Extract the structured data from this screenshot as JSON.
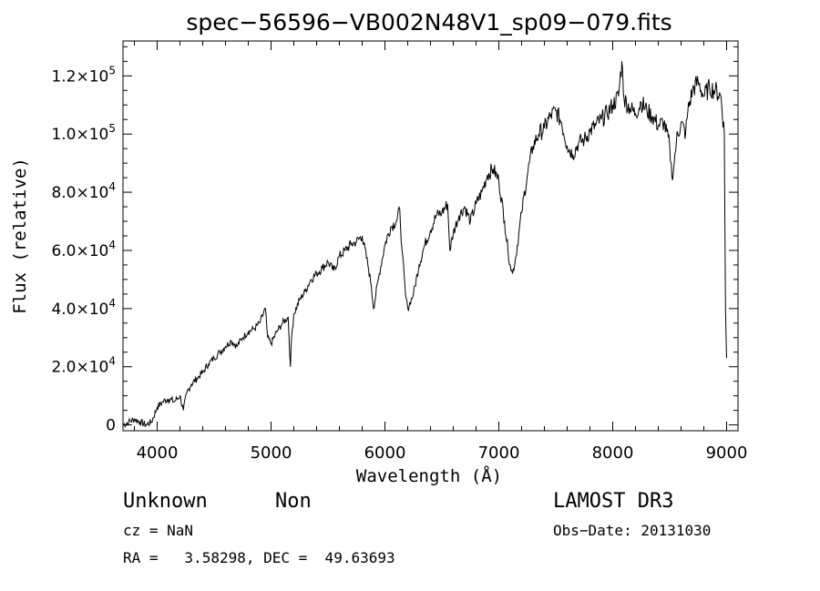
{
  "chart_data": {
    "type": "line",
    "title": "spec−56596−VB002N48V1_sp09−079.fits",
    "xlabel": "Wavelength (Å)",
    "ylabel": "Flux (relative)",
    "xlim": [
      3700,
      9100
    ],
    "ylim": [
      -2000,
      132000
    ],
    "x_ticks": [
      {
        "value": 4000,
        "label": "4000"
      },
      {
        "value": 5000,
        "label": "5000"
      },
      {
        "value": 6000,
        "label": "6000"
      },
      {
        "value": 7000,
        "label": "7000"
      },
      {
        "value": 8000,
        "label": "8000"
      },
      {
        "value": 9000,
        "label": "9000"
      }
    ],
    "y_ticks": [
      {
        "value": 0,
        "label": "0"
      },
      {
        "value": 20000,
        "mantissa": "2.0",
        "exp": "4"
      },
      {
        "value": 40000,
        "mantissa": "4.0",
        "exp": "4"
      },
      {
        "value": 60000,
        "mantissa": "6.0",
        "exp": "4"
      },
      {
        "value": 80000,
        "mantissa": "8.0",
        "exp": "4"
      },
      {
        "value": 100000,
        "mantissa": "1.0",
        "exp": "5"
      },
      {
        "value": 120000,
        "mantissa": "1.2",
        "exp": "5"
      }
    ],
    "series": [
      {
        "name": "flux",
        "x": [
          3700,
          3750,
          3800,
          3850,
          3900,
          3950,
          4000,
          4050,
          4100,
          4150,
          4200,
          4230,
          4260,
          4300,
          4350,
          4400,
          4450,
          4500,
          4550,
          4600,
          4650,
          4700,
          4750,
          4800,
          4850,
          4900,
          4950,
          4970,
          5000,
          5050,
          5100,
          5150,
          5170,
          5180,
          5200,
          5250,
          5300,
          5350,
          5400,
          5450,
          5500,
          5550,
          5600,
          5650,
          5700,
          5750,
          5800,
          5850,
          5880,
          5900,
          5950,
          6000,
          6050,
          6100,
          6130,
          6150,
          6180,
          6200,
          6250,
          6300,
          6350,
          6400,
          6450,
          6500,
          6550,
          6570,
          6600,
          6650,
          6700,
          6750,
          6800,
          6850,
          6900,
          6950,
          7000,
          7050,
          7080,
          7100,
          7120,
          7150,
          7200,
          7250,
          7300,
          7350,
          7400,
          7450,
          7500,
          7550,
          7600,
          7650,
          7700,
          7750,
          7800,
          7850,
          7900,
          7950,
          8000,
          8050,
          8080,
          8100,
          8150,
          8200,
          8250,
          8300,
          8350,
          8400,
          8450,
          8500,
          8520,
          8540,
          8560,
          8600,
          8640,
          8660,
          8700,
          8750,
          8800,
          8850,
          8900,
          8950,
          8980,
          8990,
          9000
        ],
        "y": [
          0,
          1000,
          2000,
          1000,
          0,
          1000,
          6000,
          8000,
          9000,
          8000,
          10000,
          5000,
          11000,
          14000,
          16000,
          18000,
          21000,
          23000,
          25000,
          27000,
          29000,
          27000,
          30000,
          32000,
          33000,
          35000,
          40000,
          30000,
          28000,
          32000,
          35000,
          37000,
          20000,
          30000,
          38000,
          43000,
          46000,
          50000,
          52000,
          54000,
          56000,
          53000,
          58000,
          60000,
          62000,
          63000,
          65000,
          55000,
          48000,
          40000,
          52000,
          62000,
          68000,
          70000,
          74000,
          60000,
          45000,
          40000,
          45000,
          55000,
          62000,
          67000,
          72000,
          73000,
          76000,
          60000,
          66000,
          72000,
          75000,
          70000,
          76000,
          80000,
          86000,
          88000,
          84000,
          70000,
          60000,
          55000,
          52000,
          58000,
          73000,
          86000,
          96000,
          100000,
          102000,
          106000,
          108000,
          104000,
          96000,
          93000,
          97000,
          98000,
          101000,
          103000,
          105000,
          107000,
          110000,
          113000,
          125000,
          112000,
          109000,
          107000,
          111000,
          108000,
          106000,
          103000,
          104000,
          96000,
          85000,
          90000,
          98000,
          104000,
          100000,
          108000,
          115000,
          118000,
          113000,
          116000,
          115000,
          113000,
          100000,
          40000,
          23000
        ]
      }
    ]
  },
  "footer": {
    "object_class": "Unknown",
    "object_subclass": "Non",
    "cz": "cz = NaN",
    "coords": "RA =   3.58298, DEC =  49.63693",
    "survey": "LAMOST DR3",
    "obs_date": "Obs−Date: 20131030"
  }
}
